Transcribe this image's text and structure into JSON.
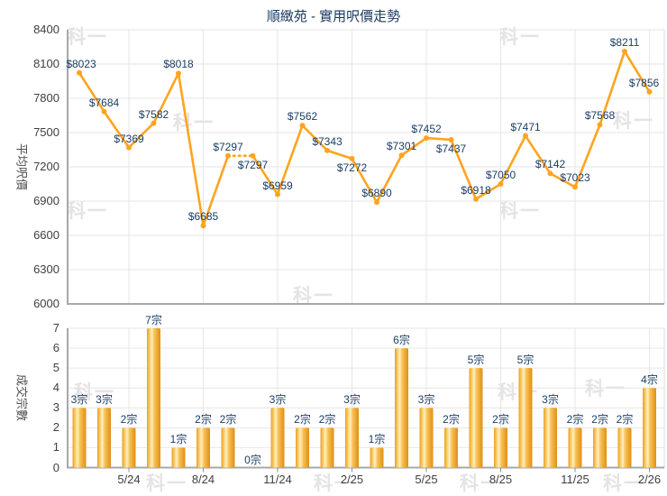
{
  "title": "順緻苑 - 實用呎價走勢",
  "watermark": {
    "text": "科一"
  },
  "price_chart": {
    "ylabel": "平均呎價",
    "yticks": [
      8400,
      8100,
      7800,
      7500,
      7200,
      6900,
      6600,
      6300,
      6000
    ]
  },
  "volume_chart": {
    "ylabel": "成交宗數",
    "yticks": [
      7,
      6,
      5,
      4,
      3,
      2,
      1,
      0
    ],
    "xticks": [
      "5/24",
      "8/24",
      "11/24",
      "2/25",
      "5/25",
      "8/25",
      "11/25",
      "2/26"
    ]
  },
  "colors": {
    "line": "#FFA41E",
    "marker": "#FFA41E",
    "data_label": "#1B3E66",
    "title": "#17375E",
    "grid": "#e6e6e6",
    "axis": "#a8a8a8",
    "tick_text": "#3f3f3f",
    "bar_edge": "#DF8F14",
    "bar_highlight": "#FFF0C2"
  },
  "chart_data": [
    {
      "type": "line",
      "title": "順緻苑 - 實用呎價走勢",
      "ylabel": "平均呎價",
      "ylim": [
        6000,
        8400
      ],
      "y_step": 300,
      "n_points": 24,
      "xtick_labels": [
        "5/24",
        "8/24",
        "11/24",
        "2/25",
        "5/25",
        "8/25",
        "11/25",
        "2/26"
      ],
      "xtick_indices": [
        2,
        5,
        8,
        11,
        14,
        17,
        20,
        23
      ],
      "values": [
        8023,
        7684,
        7369,
        7582,
        8018,
        6685,
        7297,
        7297,
        6959,
        7562,
        7343,
        7272,
        6890,
        7301,
        7452,
        7437,
        6918,
        7050,
        7471,
        7142,
        7023,
        7568,
        8211,
        7856
      ],
      "point_labels": [
        "$8023",
        "$7684",
        "$7369",
        "$7582",
        "$8018",
        "$6685",
        "$7297",
        "$7297",
        "$6959",
        "$7562",
        "$7343",
        "$7272",
        "$6890",
        "$7301",
        "$7452",
        "$7437",
        "$6918",
        "$7050",
        "$7471",
        "$7142",
        "$7023",
        "$7568",
        "$8211",
        "$7856"
      ],
      "dotted_segment": [
        6,
        7
      ],
      "grid": true,
      "legend": false
    },
    {
      "type": "bar",
      "ylabel": "成交宗數",
      "ylim": [
        0,
        7
      ],
      "y_step": 1,
      "xtick_labels": [
        "5/24",
        "8/24",
        "11/24",
        "2/25",
        "5/25",
        "8/25",
        "11/25",
        "2/26"
      ],
      "xtick_indices": [
        2,
        5,
        8,
        11,
        14,
        17,
        20,
        23
      ],
      "values": [
        3,
        3,
        2,
        7,
        1,
        2,
        2,
        0,
        3,
        2,
        2,
        3,
        1,
        6,
        3,
        2,
        5,
        2,
        5,
        3,
        2,
        2,
        2,
        4
      ],
      "bar_labels": [
        "3宗",
        "3宗",
        "2宗",
        "7宗",
        "1宗",
        "2宗",
        "2宗",
        "0宗",
        "3宗",
        "2宗",
        "2宗",
        "3宗",
        "1宗",
        "6宗",
        "3宗",
        "2宗",
        "5宗",
        "2宗",
        "5宗",
        "3宗",
        "2宗",
        "2宗",
        "2宗",
        "4宗"
      ],
      "grid": true,
      "legend": false
    }
  ]
}
